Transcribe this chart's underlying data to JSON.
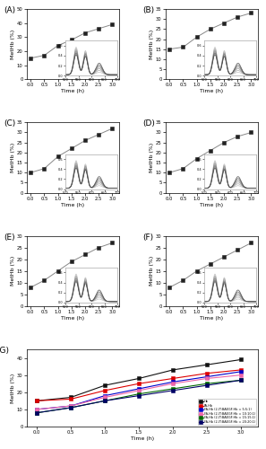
{
  "time_points": [
    0.0,
    0.5,
    1.0,
    1.5,
    2.0,
    2.5,
    3.0
  ],
  "series_A": [
    15,
    17,
    24,
    28,
    33,
    36,
    39
  ],
  "series_B": [
    15,
    16,
    21,
    25,
    28,
    31,
    33
  ],
  "series_C": [
    10,
    12,
    18,
    22,
    26,
    29,
    32
  ],
  "series_D": [
    10,
    12,
    17,
    21,
    25,
    28,
    30
  ],
  "series_E": [
    8,
    11,
    15,
    19,
    22,
    25,
    27
  ],
  "series_F": [
    8,
    11,
    15,
    18,
    21,
    24,
    27
  ],
  "ylims": {
    "A": [
      0,
      50
    ],
    "B": [
      0,
      35
    ],
    "C": [
      0,
      35
    ],
    "D": [
      0,
      35
    ],
    "E": [
      0,
      30
    ],
    "F": [
      0,
      30
    ]
  },
  "yticks": {
    "A": [
      0,
      10,
      20,
      30,
      40,
      50
    ],
    "B": [
      0,
      5,
      10,
      15,
      20,
      25,
      30,
      35
    ],
    "C": [
      0,
      5,
      10,
      15,
      20,
      25,
      30,
      35
    ],
    "D": [
      0,
      5,
      10,
      15,
      20,
      25,
      30,
      35
    ],
    "E": [
      0,
      5,
      10,
      15,
      20,
      25,
      30
    ],
    "F": [
      0,
      5,
      10,
      15,
      20,
      25,
      30
    ]
  },
  "panel_labels": [
    "(A)",
    "(B)",
    "(C)",
    "(D)",
    "(E)",
    "(F)",
    "(G)"
  ],
  "xlabel": "Time (h)",
  "ylabel": "MetHb (%)",
  "line_color": "#888888",
  "marker": "s",
  "marker_color": "#222222",
  "marker_size": 3.0,
  "colors_G": {
    "Hb": "#111111",
    "FA-Hb": "#dd0000",
    "5_5_1": "#0000cc",
    "10_10_1": "#ee66aa",
    "15_15_1": "#006600",
    "20_20_1": "#000066"
  },
  "legend_G": [
    "Hb",
    "FA-Hb",
    "FA-Hb (2-IT:BAEGF:Hb = 5:5:1)",
    "FA-Hb (2-IT:BAEGF:Hb = 10:10:1)",
    "FA-Hb (2-IT:BAEGF:Hb = 15:15:1)",
    "FA-Hb (2-IT:BAEGF:Hb = 20:20:1)"
  ],
  "background_color": "#ffffff",
  "inset_bg": "#ffffff",
  "inset_border": "#aaaaaa"
}
